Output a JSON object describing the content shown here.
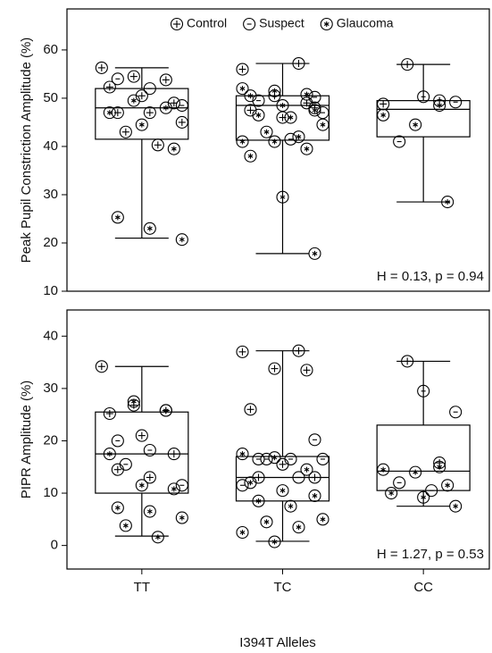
{
  "chart_data": {
    "type": "box",
    "xlabel": "I394T Alleles",
    "categories": [
      "TT",
      "TC",
      "CC"
    ],
    "series": [
      {
        "name": "Control",
        "marker": "plus",
        "color": "#000000"
      },
      {
        "name": "Suspect",
        "marker": "minus",
        "color": "#000000"
      },
      {
        "name": "Glaucoma",
        "marker": "star",
        "color": "#000000"
      }
    ],
    "panels": [
      {
        "ylabel": "Peak Pupil Constriction Amplitude (%)",
        "ylim": [
          10,
          68.5
        ],
        "yticks": [
          10,
          20,
          30,
          40,
          50,
          60
        ],
        "annotation": "H = 0.13, p = 0.94",
        "boxes": [
          {
            "whislo": 21,
            "q1": 41.5,
            "med": 48,
            "q3": 52,
            "whishi": 56.3
          },
          {
            "whislo": 17.8,
            "q1": 41.3,
            "med": 48.5,
            "q3": 50.5,
            "whishi": 57.2
          },
          {
            "whislo": 28.5,
            "q1": 42,
            "med": 47.7,
            "q3": 49.5,
            "whishi": 57
          }
        ],
        "points": [
          [
            [
              56.3,
              54.5,
              53.8,
              52.3,
              50.5,
              49,
              47,
              47,
              45,
              43,
              40.3
            ],
            [
              57.2,
              56,
              50.5,
              49,
              47.5,
              46,
              48
            ],
            [
              57,
              49.5,
              48.8
            ]
          ],
          [
            [
              54,
              52,
              48.5
            ],
            [
              50.2,
              49.5,
              41.5,
              47
            ],
            [
              50.3,
              49.2,
              41
            ]
          ],
          [
            [
              49.5,
              48,
              47,
              44.5,
              39.5,
              25.3,
              23,
              20.7
            ],
            [
              52,
              51.5,
              50.8,
              50.5,
              48.5,
              47.5,
              46.5,
              46,
              44.5,
              43,
              42,
              41,
              41,
              39.5,
              38,
              29.5,
              17.8
            ],
            [
              48.5,
              46.5,
              44.5,
              28.5
            ]
          ]
        ]
      },
      {
        "ylabel": "PIPR Amplitude (%)",
        "ylim": [
          -4.5,
          45
        ],
        "yticks": [
          0,
          10,
          20,
          30,
          40
        ],
        "annotation": "H = 1.27, p = 0.53",
        "boxes": [
          {
            "whislo": 1.8,
            "q1": 10,
            "med": 17.5,
            "q3": 25.5,
            "whishi": 34.2
          },
          {
            "whislo": 0.8,
            "q1": 8.5,
            "med": 13,
            "q3": 17,
            "whishi": 37.2
          },
          {
            "whislo": 7.5,
            "q1": 10.5,
            "med": 14.2,
            "q3": 23,
            "whishi": 35.2
          }
        ],
        "points": [
          [
            [
              34.2,
              26.8,
              25.8,
              25.2,
              21,
              17.5,
              14.5,
              13
            ],
            [
              37.2,
              37,
              33.8,
              33.5,
              26,
              15.5,
              13,
              13
            ],
            [
              35.2,
              15.8
            ]
          ],
          [
            [
              20,
              18.2,
              11.5,
              15.5
            ],
            [
              20.2,
              16.5,
              16.5,
              16.5,
              16.5,
              13,
              11.5
            ],
            [
              29.5,
              25.5,
              12,
              10.5
            ]
          ],
          [
            [
              27.5,
              25.8,
              17.5,
              11.5,
              10.8,
              7.2,
              6.5,
              5.3,
              3.8,
              1.6
            ],
            [
              17.5,
              16.8,
              14.5,
              12,
              10.5,
              9.5,
              8.5,
              7.5,
              5,
              4.5,
              3.5,
              2.5,
              0.7
            ],
            [
              15,
              14.5,
              14,
              11.5,
              10,
              9.2,
              7.5
            ]
          ]
        ]
      }
    ]
  }
}
